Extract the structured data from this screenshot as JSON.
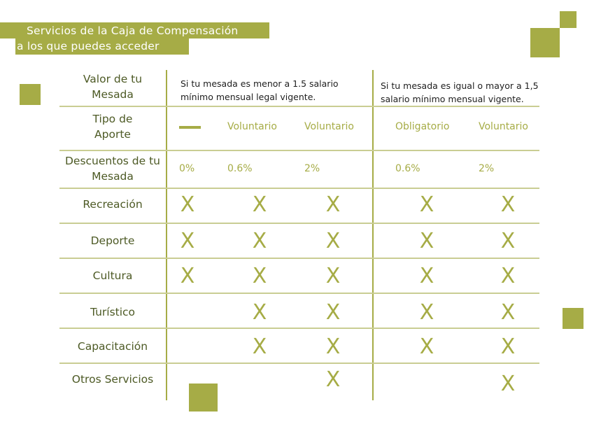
{
  "header": {
    "title_line1": "Servicios de la Caja de Compensación",
    "title_line2": "a los que puedes acceder"
  },
  "colors": {
    "accent": "#a6ac46",
    "label_text": "#4d5a25"
  },
  "table": {
    "row_labels": {
      "valor": "Valor de tu Mesada",
      "tipo": "Tipo de Aporte",
      "descuentos": "Descuentos de tu Mesada"
    },
    "conditions": [
      "Si tu mesada es menor a 1.5 salario mínimo mensual legal vigente.",
      "Si tu mesada es igual o mayor a 1,5 salario mínimo mensual vigente."
    ],
    "tipo_aporte": [
      "—",
      "Voluntario",
      "Voluntario",
      "Obligatorio",
      "Voluntario"
    ],
    "descuentos": [
      "0%",
      "0.6%",
      "2%",
      "0.6%",
      "2%"
    ],
    "mark_symbol": "X",
    "services": [
      {
        "name": "Recreación",
        "included": [
          true,
          true,
          true,
          true,
          true
        ]
      },
      {
        "name": "Deporte",
        "included": [
          true,
          true,
          true,
          true,
          true
        ]
      },
      {
        "name": "Cultura",
        "included": [
          true,
          true,
          true,
          true,
          true
        ]
      },
      {
        "name": "Turístico",
        "included": [
          false,
          true,
          true,
          true,
          true
        ]
      },
      {
        "name": "Capacitación",
        "included": [
          false,
          true,
          true,
          true,
          true
        ]
      },
      {
        "name": "Otros Servicios",
        "included": [
          false,
          false,
          true,
          false,
          true
        ]
      }
    ]
  }
}
